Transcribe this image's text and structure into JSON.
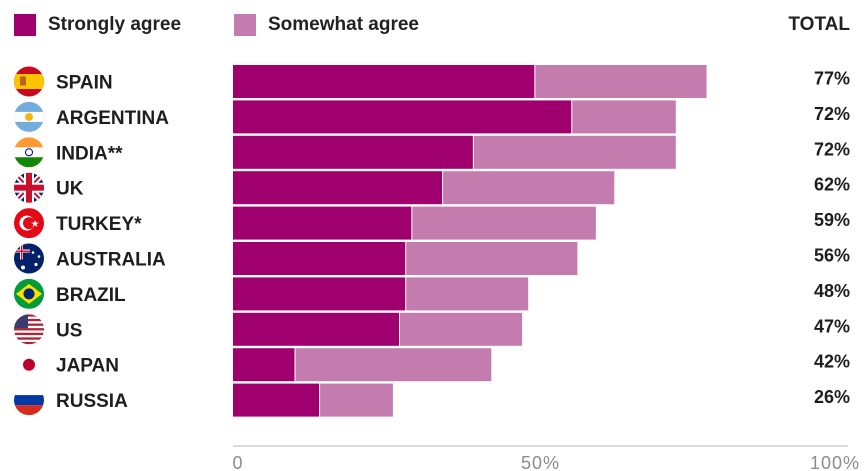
{
  "legend": {
    "strongly_label": "Strongly agree",
    "somewhat_label": "Somewhat agree",
    "total_label": "TOTAL"
  },
  "colors": {
    "strongly": "#A0006E",
    "somewhat": "#C47BAE",
    "axis": "#cfcfcf",
    "tick": "#8c8c8c"
  },
  "chart_data": {
    "type": "bar",
    "orientation": "horizontal",
    "stacked": true,
    "categories": [
      "SPAIN",
      "ARGENTINA",
      "INDIA**",
      "UK",
      "TURKEY*",
      "AUSTRALIA",
      "BRAZIL",
      "US",
      "JAPAN",
      "RUSSIA"
    ],
    "flag_icons": [
      "spain-flag-icon",
      "argentina-flag-icon",
      "india-flag-icon",
      "uk-flag-icon",
      "turkey-flag-icon",
      "australia-flag-icon",
      "brazil-flag-icon",
      "us-flag-icon",
      "japan-flag-icon",
      "russia-flag-icon"
    ],
    "series": [
      {
        "name": "Strongly agree",
        "values": [
          49,
          55,
          39,
          34,
          29,
          28,
          28,
          27,
          10,
          14
        ]
      },
      {
        "name": "Somewhat agree",
        "values": [
          28,
          17,
          33,
          28,
          30,
          28,
          20,
          20,
          32,
          12
        ]
      }
    ],
    "totals": [
      "77%",
      "72%",
      "72%",
      "62%",
      "59%",
      "56%",
      "48%",
      "47%",
      "42%",
      "26%"
    ],
    "x_ticks": [
      "0",
      "50%",
      "100%"
    ],
    "xlim": [
      0,
      100
    ],
    "legend_position": "top"
  }
}
